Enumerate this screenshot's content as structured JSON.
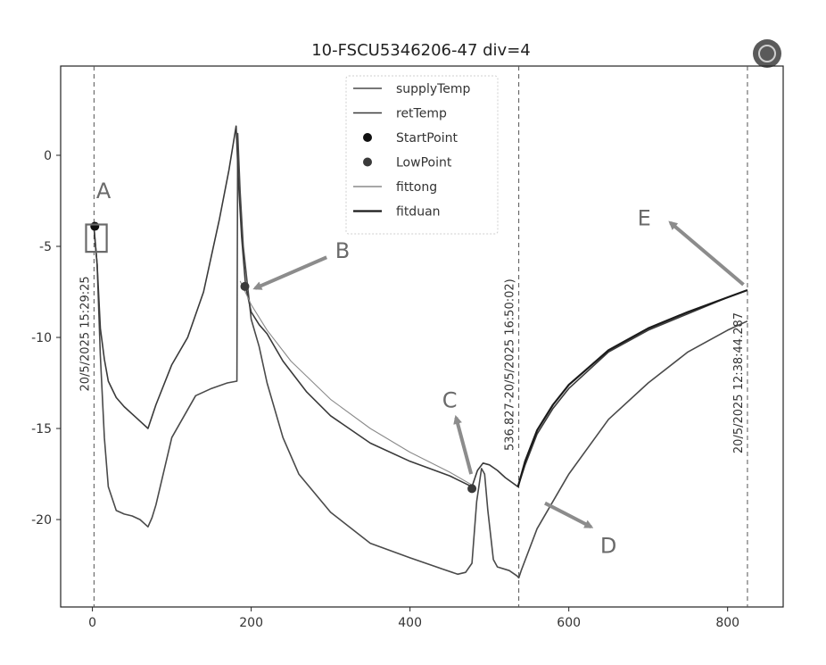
{
  "chart_data": {
    "type": "line",
    "title": "10-FSCU5346206-47 div=4",
    "xlim": [
      -40,
      870
    ],
    "ylim": [
      -24.8,
      4.9
    ],
    "x_ticks": [
      0,
      200,
      400,
      600,
      800
    ],
    "y_ticks": [
      0,
      -5,
      -10,
      -15,
      -20
    ],
    "x_tick_labels": [
      "0",
      "200",
      "400",
      "600",
      "800"
    ],
    "y_tick_labels": [
      "0",
      "-5",
      "-10",
      "-15",
      "-20"
    ],
    "grid": false,
    "legend_position": "top-center",
    "colors": {
      "supplyTemp": "#4a4a4a",
      "retTemp": "#3a3a3a",
      "fittong": "#8a8a8a",
      "fitduan": "#1a1a1a",
      "arrow": "#8c8c8c",
      "vline": "#555555"
    },
    "series": [
      {
        "name": "supplyTemp",
        "x": [
          2,
          6,
          10,
          15,
          20,
          30,
          40,
          50,
          60,
          70,
          75,
          80,
          100,
          130,
          150,
          170,
          182,
          183,
          186,
          190,
          200,
          210,
          220,
          240,
          260,
          300,
          350,
          400,
          440,
          460,
          470,
          478,
          484,
          490,
          494,
          498,
          505,
          510,
          525,
          535,
          537,
          540,
          560,
          600,
          650,
          700,
          750,
          800,
          825
        ],
        "y": [
          -4,
          -6,
          -11,
          -15.5,
          -18.2,
          -19.5,
          -19.7,
          -19.8,
          -20,
          -20.4,
          -19.9,
          -19.2,
          -15.5,
          -13.2,
          -12.8,
          -12.5,
          -12.4,
          1.2,
          -2,
          -5,
          -9,
          -10.5,
          -12.5,
          -15.5,
          -17.5,
          -19.6,
          -21.3,
          -22.1,
          -22.7,
          -23,
          -22.9,
          -22.4,
          -19,
          -17.2,
          -17.5,
          -19.5,
          -22.2,
          -22.6,
          -22.8,
          -23.1,
          -23.2,
          -22.8,
          -20.5,
          -17.5,
          -14.5,
          -12.5,
          -10.8,
          -9.6,
          -9.1
        ]
      },
      {
        "name": "retTemp",
        "x": [
          2,
          6,
          10,
          15,
          20,
          30,
          40,
          55,
          70,
          80,
          100,
          120,
          140,
          160,
          172,
          181,
          184,
          188,
          193,
          200,
          210,
          220,
          240,
          270,
          300,
          350,
          400,
          450,
          478,
          485,
          492,
          500,
          510,
          520,
          536,
          545,
          560,
          580,
          600,
          650,
          700,
          750,
          800,
          825
        ],
        "y": [
          -4,
          -6,
          -9.5,
          -11.2,
          -12.4,
          -13.3,
          -13.8,
          -14.4,
          -15,
          -13.7,
          -11.5,
          -10,
          -7.5,
          -3.5,
          -0.8,
          1.6,
          -1.5,
          -4.5,
          -7.2,
          -8.6,
          -9.3,
          -9.8,
          -11.3,
          -13,
          -14.3,
          -15.8,
          -16.8,
          -17.6,
          -18.2,
          -17.3,
          -16.9,
          -17,
          -17.3,
          -17.7,
          -18.2,
          -17,
          -15.3,
          -13.9,
          -12.8,
          -10.8,
          -9.6,
          -8.7,
          -7.8,
          -7.4
        ]
      },
      {
        "name": "fittong",
        "x": [
          186,
          200,
          220,
          250,
          300,
          350,
          400,
          450,
          478
        ],
        "y": [
          -6.9,
          -8.2,
          -9.6,
          -11.3,
          -13.4,
          -15,
          -16.3,
          -17.4,
          -18.1
        ]
      },
      {
        "name": "fitduan",
        "x": [
          536,
          545,
          560,
          580,
          600,
          650,
          700,
          750,
          800,
          825
        ],
        "y": [
          -18.2,
          -16.8,
          -15.1,
          -13.7,
          -12.6,
          -10.7,
          -9.5,
          -8.6,
          -7.8,
          -7.4
        ]
      }
    ],
    "points": [
      {
        "name": "StartPoint",
        "x": 3,
        "y": -3.9,
        "color": "#111111"
      },
      {
        "name": "LowPoint",
        "x": 192,
        "y": -7.2,
        "color": "#3a3a3a"
      },
      {
        "name": "LowPoint",
        "x": 478,
        "y": -18.3,
        "color": "#3a3a3a"
      }
    ],
    "vlines": [
      {
        "x": 2,
        "label": "20/5/2025 15:29:25",
        "label_y": -9.8
      },
      {
        "x": 537,
        "label": "536.827-20/5/2025 16:50:02)",
        "label_y": -11.5
      },
      {
        "x": 825,
        "label": "20/5/2025 12:38:44.287",
        "label_y": -12.5
      }
    ],
    "legend_entries": [
      {
        "label": "supplyTemp",
        "kind": "line",
        "color": "#4a4a4a"
      },
      {
        "label": "retTemp",
        "kind": "line",
        "color": "#3a3a3a"
      },
      {
        "label": "StartPoint",
        "kind": "dot",
        "color": "#111111"
      },
      {
        "label": "LowPoint",
        "kind": "dot",
        "color": "#3a3a3a"
      },
      {
        "label": "fittong",
        "kind": "line",
        "color": "#8a8a8a"
      },
      {
        "label": "fitduan",
        "kind": "line",
        "color": "#1a1a1a"
      }
    ],
    "annotations": [
      {
        "text": "A",
        "x": 14,
        "y": -2,
        "arrow": false
      },
      {
        "text": "B",
        "x": 315,
        "y": -5.3,
        "arrow": true,
        "arrow_from": [
          295,
          -5.6
        ],
        "arrow_to": [
          205,
          -7.3
        ]
      },
      {
        "text": "C",
        "x": 450,
        "y": -13.5,
        "arrow": true,
        "arrow_from": [
          477,
          -17.5
        ],
        "arrow_to": [
          458,
          -14.4
        ]
      },
      {
        "text": "D",
        "x": 650,
        "y": -21.5,
        "arrow": true,
        "arrow_from": [
          570,
          -19.1
        ],
        "arrow_to": [
          628,
          -20.4
        ]
      },
      {
        "text": "E",
        "x": 695,
        "y": -3.5,
        "arrow": true,
        "arrow_from": [
          820,
          -7.1
        ],
        "arrow_to": [
          728,
          -3.7
        ]
      }
    ],
    "highlight_box": {
      "x_range": [
        -8,
        18
      ],
      "y_range": [
        -5.3,
        -3.8
      ]
    }
  }
}
